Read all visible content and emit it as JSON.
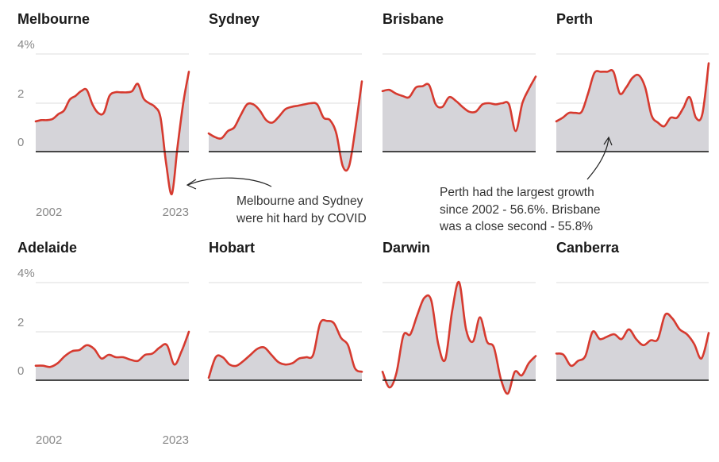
{
  "chart_data": {
    "type": "area",
    "y_axis": {
      "tick_labels": [
        "4%",
        "2",
        "0"
      ],
      "ticks": [
        4,
        2,
        0
      ],
      "range": [
        -2.5,
        4
      ]
    },
    "x_axis": {
      "start_year": "2002",
      "end_year": "2023"
    },
    "grid": true,
    "colors": {
      "line": "#d63a2f",
      "area": "#d5d4d9",
      "grid": "#dddddd",
      "baseline": "#111111"
    },
    "panels": [
      {
        "title": "Melbourne",
        "values": [
          1.25,
          1.3,
          1.3,
          1.35,
          1.55,
          1.7,
          2.15,
          2.3,
          2.5,
          2.55,
          1.95,
          1.6,
          1.6,
          2.3,
          2.45,
          2.45,
          2.45,
          2.5,
          2.8,
          2.2,
          2.0,
          1.85,
          1.4,
          -0.5,
          -1.75,
          0.2,
          2.0,
          3.3
        ]
      },
      {
        "title": "Sydney",
        "values": [
          0.75,
          0.6,
          0.55,
          0.85,
          1.0,
          1.5,
          1.95,
          1.95,
          1.7,
          1.3,
          1.2,
          1.45,
          1.75,
          1.85,
          1.9,
          1.95,
          2.0,
          1.95,
          1.4,
          1.3,
          0.75,
          -0.6,
          -0.6,
          1.0,
          2.9
        ]
      },
      {
        "title": "Brisbane",
        "values": [
          2.5,
          2.55,
          2.4,
          2.3,
          2.25,
          2.65,
          2.7,
          2.75,
          1.95,
          1.85,
          2.25,
          2.1,
          1.85,
          1.65,
          1.65,
          1.95,
          2.0,
          1.95,
          2.0,
          1.95,
          0.85,
          2.0,
          2.6,
          3.1
        ]
      },
      {
        "title": "Perth",
        "values": [
          1.25,
          1.4,
          1.6,
          1.6,
          1.65,
          2.4,
          3.25,
          3.3,
          3.3,
          3.3,
          2.4,
          2.65,
          3.05,
          3.15,
          2.65,
          1.5,
          1.2,
          1.05,
          1.4,
          1.4,
          1.8,
          2.25,
          1.4,
          1.55,
          3.65
        ]
      },
      {
        "title": "Adelaide",
        "values": [
          0.6,
          0.6,
          0.55,
          0.7,
          1.0,
          1.2,
          1.25,
          1.45,
          1.3,
          0.9,
          1.05,
          0.95,
          0.95,
          0.85,
          0.8,
          1.05,
          1.1,
          1.35,
          1.45,
          0.65,
          1.2,
          2.0
        ]
      },
      {
        "title": "Hobart",
        "values": [
          0.1,
          0.95,
          0.95,
          0.65,
          0.6,
          0.8,
          1.05,
          1.3,
          1.35,
          1.05,
          0.75,
          0.65,
          0.7,
          0.9,
          0.95,
          1.05,
          2.35,
          2.45,
          2.35,
          1.75,
          1.45,
          0.5,
          0.35
        ]
      },
      {
        "title": "Darwin",
        "values": [
          0.35,
          -0.3,
          0.3,
          1.85,
          1.9,
          2.7,
          3.4,
          3.3,
          1.5,
          0.85,
          2.85,
          4.05,
          2.1,
          1.6,
          2.6,
          1.6,
          1.35,
          0.05,
          -0.55,
          0.35,
          0.2,
          0.7,
          1.0
        ]
      },
      {
        "title": "Canberra",
        "values": [
          1.1,
          1.05,
          0.6,
          0.8,
          1.0,
          2.0,
          1.7,
          1.8,
          1.9,
          1.7,
          2.1,
          1.7,
          1.45,
          1.65,
          1.7,
          2.7,
          2.55,
          2.1,
          1.9,
          1.5,
          0.9,
          1.95
        ]
      }
    ],
    "annotations": [
      {
        "id": "covid",
        "lines": [
          "Melbourne and Sydney",
          "were hit hard by COVID"
        ]
      },
      {
        "id": "perth",
        "lines": [
          "Perth had the largest growth",
          "since 2002 - 56.6%. Brisbane",
          "was a close second - 55.8%"
        ]
      }
    ]
  }
}
